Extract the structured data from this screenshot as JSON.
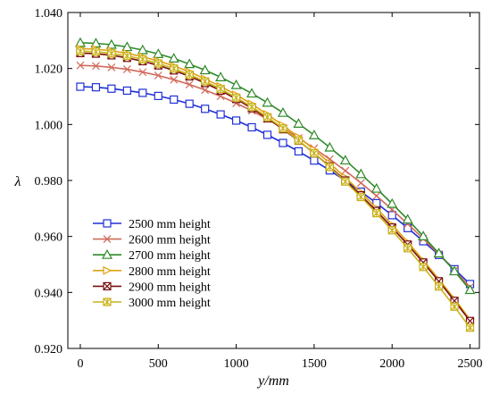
{
  "chart_data": {
    "type": "line",
    "xlabel": "y/mm",
    "ylabel": "λ",
    "xlim": [
      -80,
      2560
    ],
    "ylim": [
      0.92,
      1.04
    ],
    "xticks": [
      0,
      500,
      1000,
      1500,
      2000,
      2500
    ],
    "yticks": [
      0.92,
      0.94,
      0.96,
      0.98,
      1.0,
      1.02,
      1.04
    ],
    "ytick_labels": [
      "0.920",
      "0.940",
      "0.960",
      "0.980",
      "1.000",
      "1.020",
      "1.040"
    ],
    "grid": false,
    "legend_position": "bottom-left",
    "x": [
      0,
      100,
      200,
      300,
      400,
      500,
      600,
      700,
      800,
      900,
      1000,
      1100,
      1200,
      1300,
      1400,
      1500,
      1600,
      1700,
      1800,
      1900,
      2000,
      2100,
      2200,
      2300,
      2400,
      2500
    ],
    "series": [
      {
        "name": "2500 mm height",
        "color": "#1f2fd6",
        "marker": "square",
        "values": [
          1.0135,
          1.0133,
          1.0128,
          1.0121,
          1.0113,
          1.0102,
          1.0089,
          1.0074,
          1.0056,
          1.0036,
          1.0014,
          0.999,
          0.9963,
          0.9934,
          0.9904,
          0.9871,
          0.9836,
          0.9799,
          0.976,
          0.9719,
          0.9676,
          0.963,
          0.9583,
          0.9534,
          0.9483,
          0.943
        ]
      },
      {
        "name": "2600 mm height",
        "color": "#d06a5a",
        "marker": "x",
        "values": [
          1.0211,
          1.0209,
          1.0204,
          1.0197,
          1.0187,
          1.0175,
          1.016,
          1.0143,
          1.0123,
          1.0101,
          1.0076,
          1.0049,
          1.0019,
          0.9987,
          0.9952,
          0.9915,
          0.9876,
          0.9835,
          0.9791,
          0.9745,
          0.9696,
          0.9645,
          0.9592,
          0.9536,
          0.9479,
          0.9419
        ]
      },
      {
        "name": "2700 mm height",
        "color": "#2f8a2a",
        "marker": "triangle",
        "values": [
          1.0292,
          1.029,
          1.0285,
          1.0277,
          1.0266,
          1.0252,
          1.0236,
          1.0216,
          1.0194,
          1.0169,
          1.0141,
          1.0111,
          1.0078,
          1.0042,
          1.0003,
          0.9962,
          0.9918,
          0.9872,
          0.9823,
          0.9771,
          0.9717,
          0.9661,
          0.9601,
          0.954,
          0.9476,
          0.9409
        ]
      },
      {
        "name": "2800 mm height",
        "color": "#e0a010",
        "marker": "triangle-right",
        "values": [
          1.0271,
          1.0269,
          1.0263,
          1.0254,
          1.0242,
          1.0227,
          1.0209,
          1.0188,
          1.0163,
          1.0136,
          1.0106,
          1.0073,
          1.0036,
          0.9997,
          0.9955,
          0.991,
          0.9862,
          0.9811,
          0.9758,
          0.9701,
          0.9642,
          0.958,
          0.9515,
          0.9447,
          0.9377,
          0.9303
        ]
      },
      {
        "name": "2900 mm height",
        "color": "#7a1010",
        "marker": "x-box",
        "values": [
          1.0255,
          1.0253,
          1.0247,
          1.0238,
          1.0226,
          1.0211,
          1.0193,
          1.0172,
          1.0148,
          1.0121,
          1.0091,
          1.0058,
          1.0022,
          0.9983,
          0.9942,
          0.9897,
          0.985,
          0.98,
          0.9747,
          0.9691,
          0.9632,
          0.9571,
          0.9507,
          0.944,
          0.937,
          0.9298
        ]
      },
      {
        "name": "3000 mm height",
        "color": "#c9b21a",
        "marker": "asterisk-box",
        "values": [
          1.0262,
          1.026,
          1.0254,
          1.0245,
          1.0233,
          1.0218,
          1.02,
          1.0178,
          1.0154,
          1.0127,
          1.0096,
          1.0063,
          1.0026,
          0.9986,
          0.9943,
          0.9897,
          0.9848,
          0.9796,
          0.9741,
          0.9683,
          0.9622,
          0.9558,
          0.9491,
          0.9421,
          0.9349,
          0.9274
        ]
      }
    ]
  }
}
